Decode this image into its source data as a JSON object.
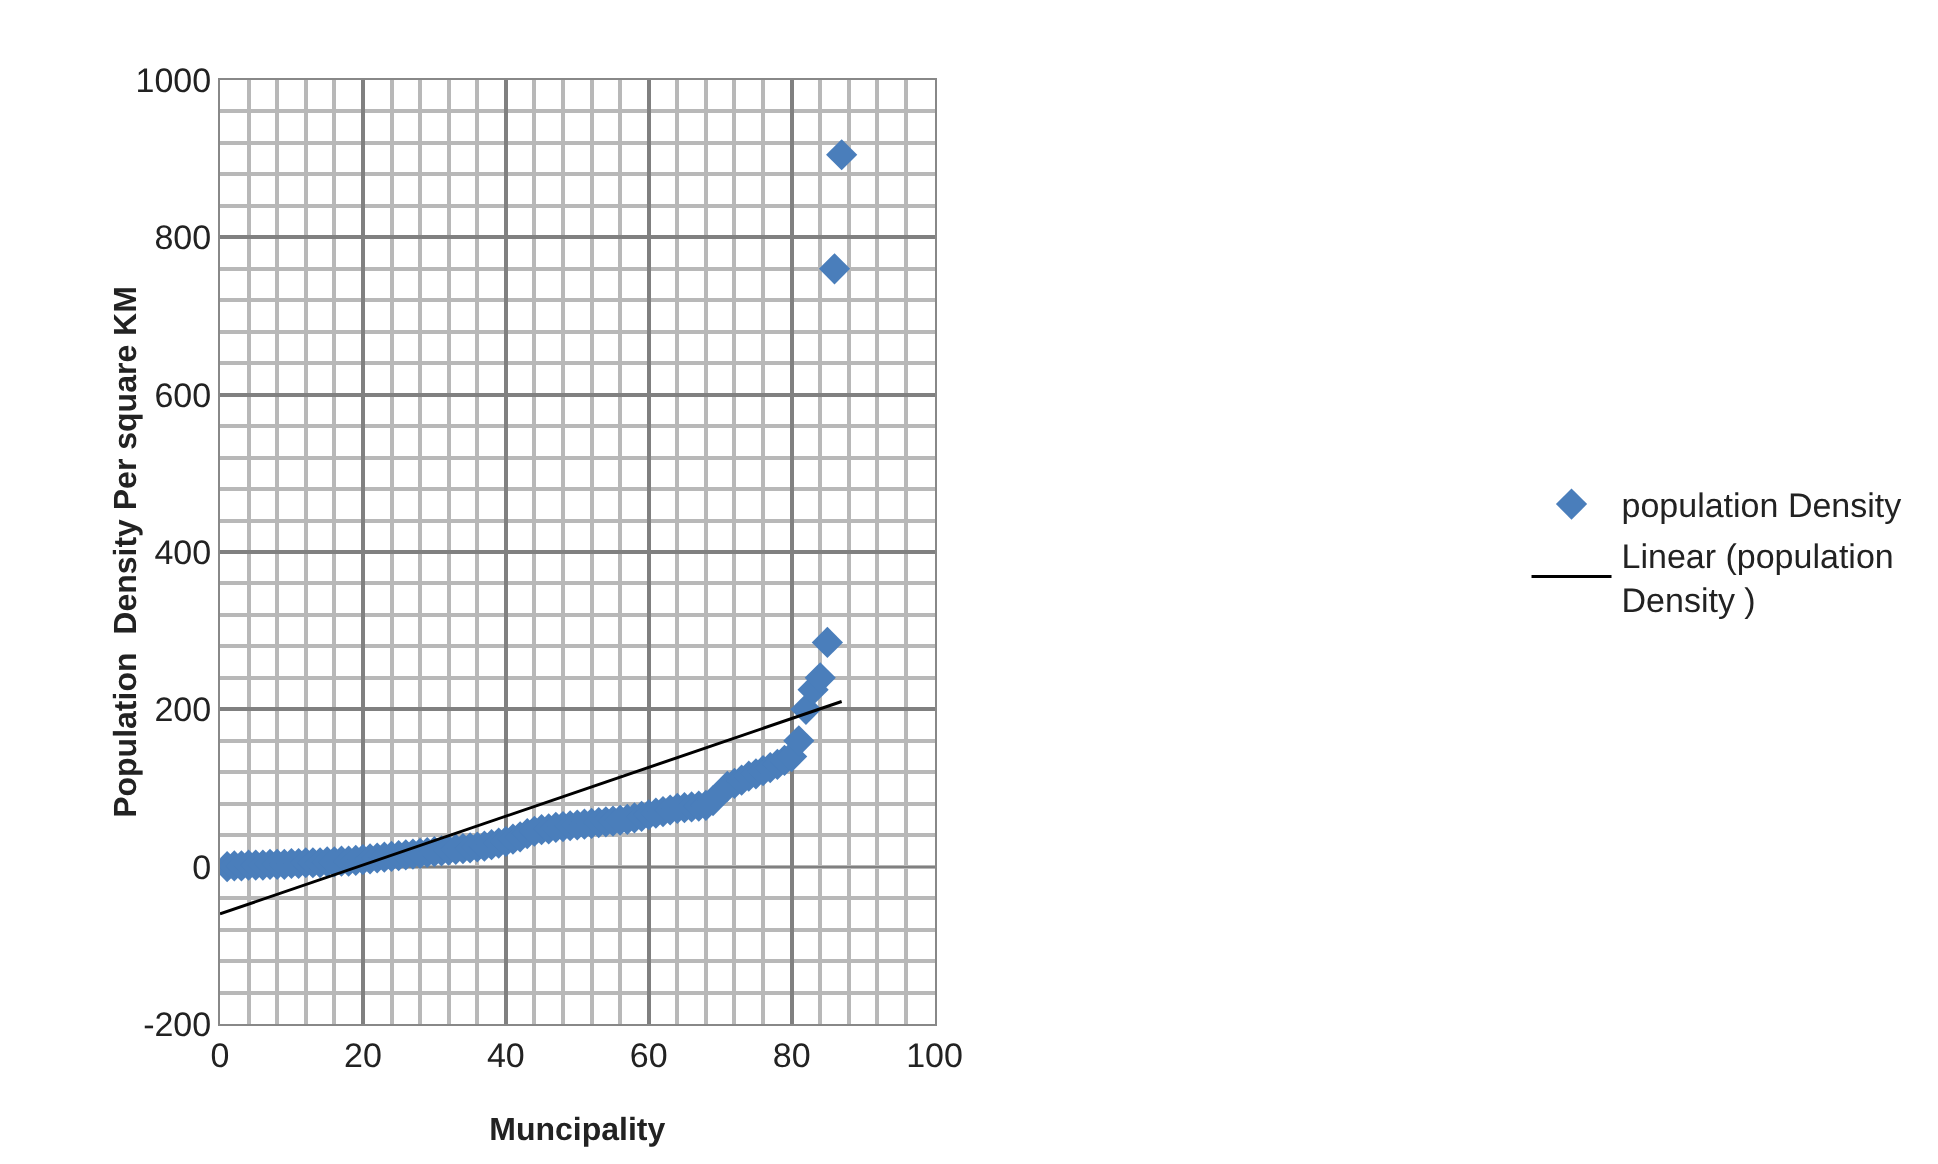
{
  "chart_data": {
    "type": "scatter",
    "xlabel": "Muncipality",
    "ylabel": "Population  Density Per square KM",
    "xlim": [
      0,
      100
    ],
    "xticks": [
      0,
      20,
      40,
      60,
      80,
      100
    ],
    "ylim": [
      -200,
      1000
    ],
    "yticks": [
      -200,
      0,
      200,
      400,
      600,
      800,
      1000
    ],
    "grid": true,
    "legend": "right",
    "series": [
      {
        "name": "population Density",
        "color": "#4a7ebb",
        "marker": "diamond",
        "x": [
          1,
          2,
          3,
          4,
          5,
          6,
          7,
          8,
          9,
          10,
          11,
          12,
          13,
          14,
          15,
          16,
          17,
          18,
          19,
          20,
          21,
          22,
          23,
          24,
          25,
          26,
          27,
          28,
          29,
          30,
          31,
          32,
          33,
          34,
          35,
          36,
          37,
          38,
          39,
          40,
          41,
          42,
          43,
          44,
          45,
          46,
          47,
          48,
          49,
          50,
          51,
          52,
          53,
          54,
          55,
          56,
          57,
          58,
          59,
          60,
          61,
          62,
          63,
          64,
          65,
          66,
          67,
          68,
          69,
          71,
          72,
          73,
          74,
          75,
          76,
          77,
          78,
          79,
          80,
          81,
          82,
          83,
          84,
          85,
          86,
          87
        ],
        "values": [
          0,
          1,
          1,
          2,
          2,
          2,
          3,
          3,
          3,
          4,
          4,
          5,
          5,
          5,
          6,
          6,
          7,
          7,
          8,
          9,
          10,
          11,
          12,
          13,
          14,
          15,
          16,
          17,
          18,
          19,
          20,
          21,
          22,
          23,
          24,
          25,
          26,
          28,
          30,
          32,
          35,
          38,
          42,
          45,
          47,
          48,
          50,
          51,
          52,
          53,
          54,
          55,
          56,
          57,
          58,
          59,
          60,
          62,
          64,
          66,
          68,
          70,
          72,
          74,
          75,
          76,
          77,
          78,
          84,
          102,
          106,
          110,
          115,
          118,
          122,
          126,
          130,
          135,
          140,
          160,
          200,
          225,
          240,
          285,
          760,
          905
        ]
      },
      {
        "name": "Linear (population Density )",
        "type": "line",
        "color": "#000000",
        "line_style": "solid",
        "marker": "none",
        "x": [
          0,
          87
        ],
        "values": [
          -60,
          210
        ]
      }
    ]
  }
}
